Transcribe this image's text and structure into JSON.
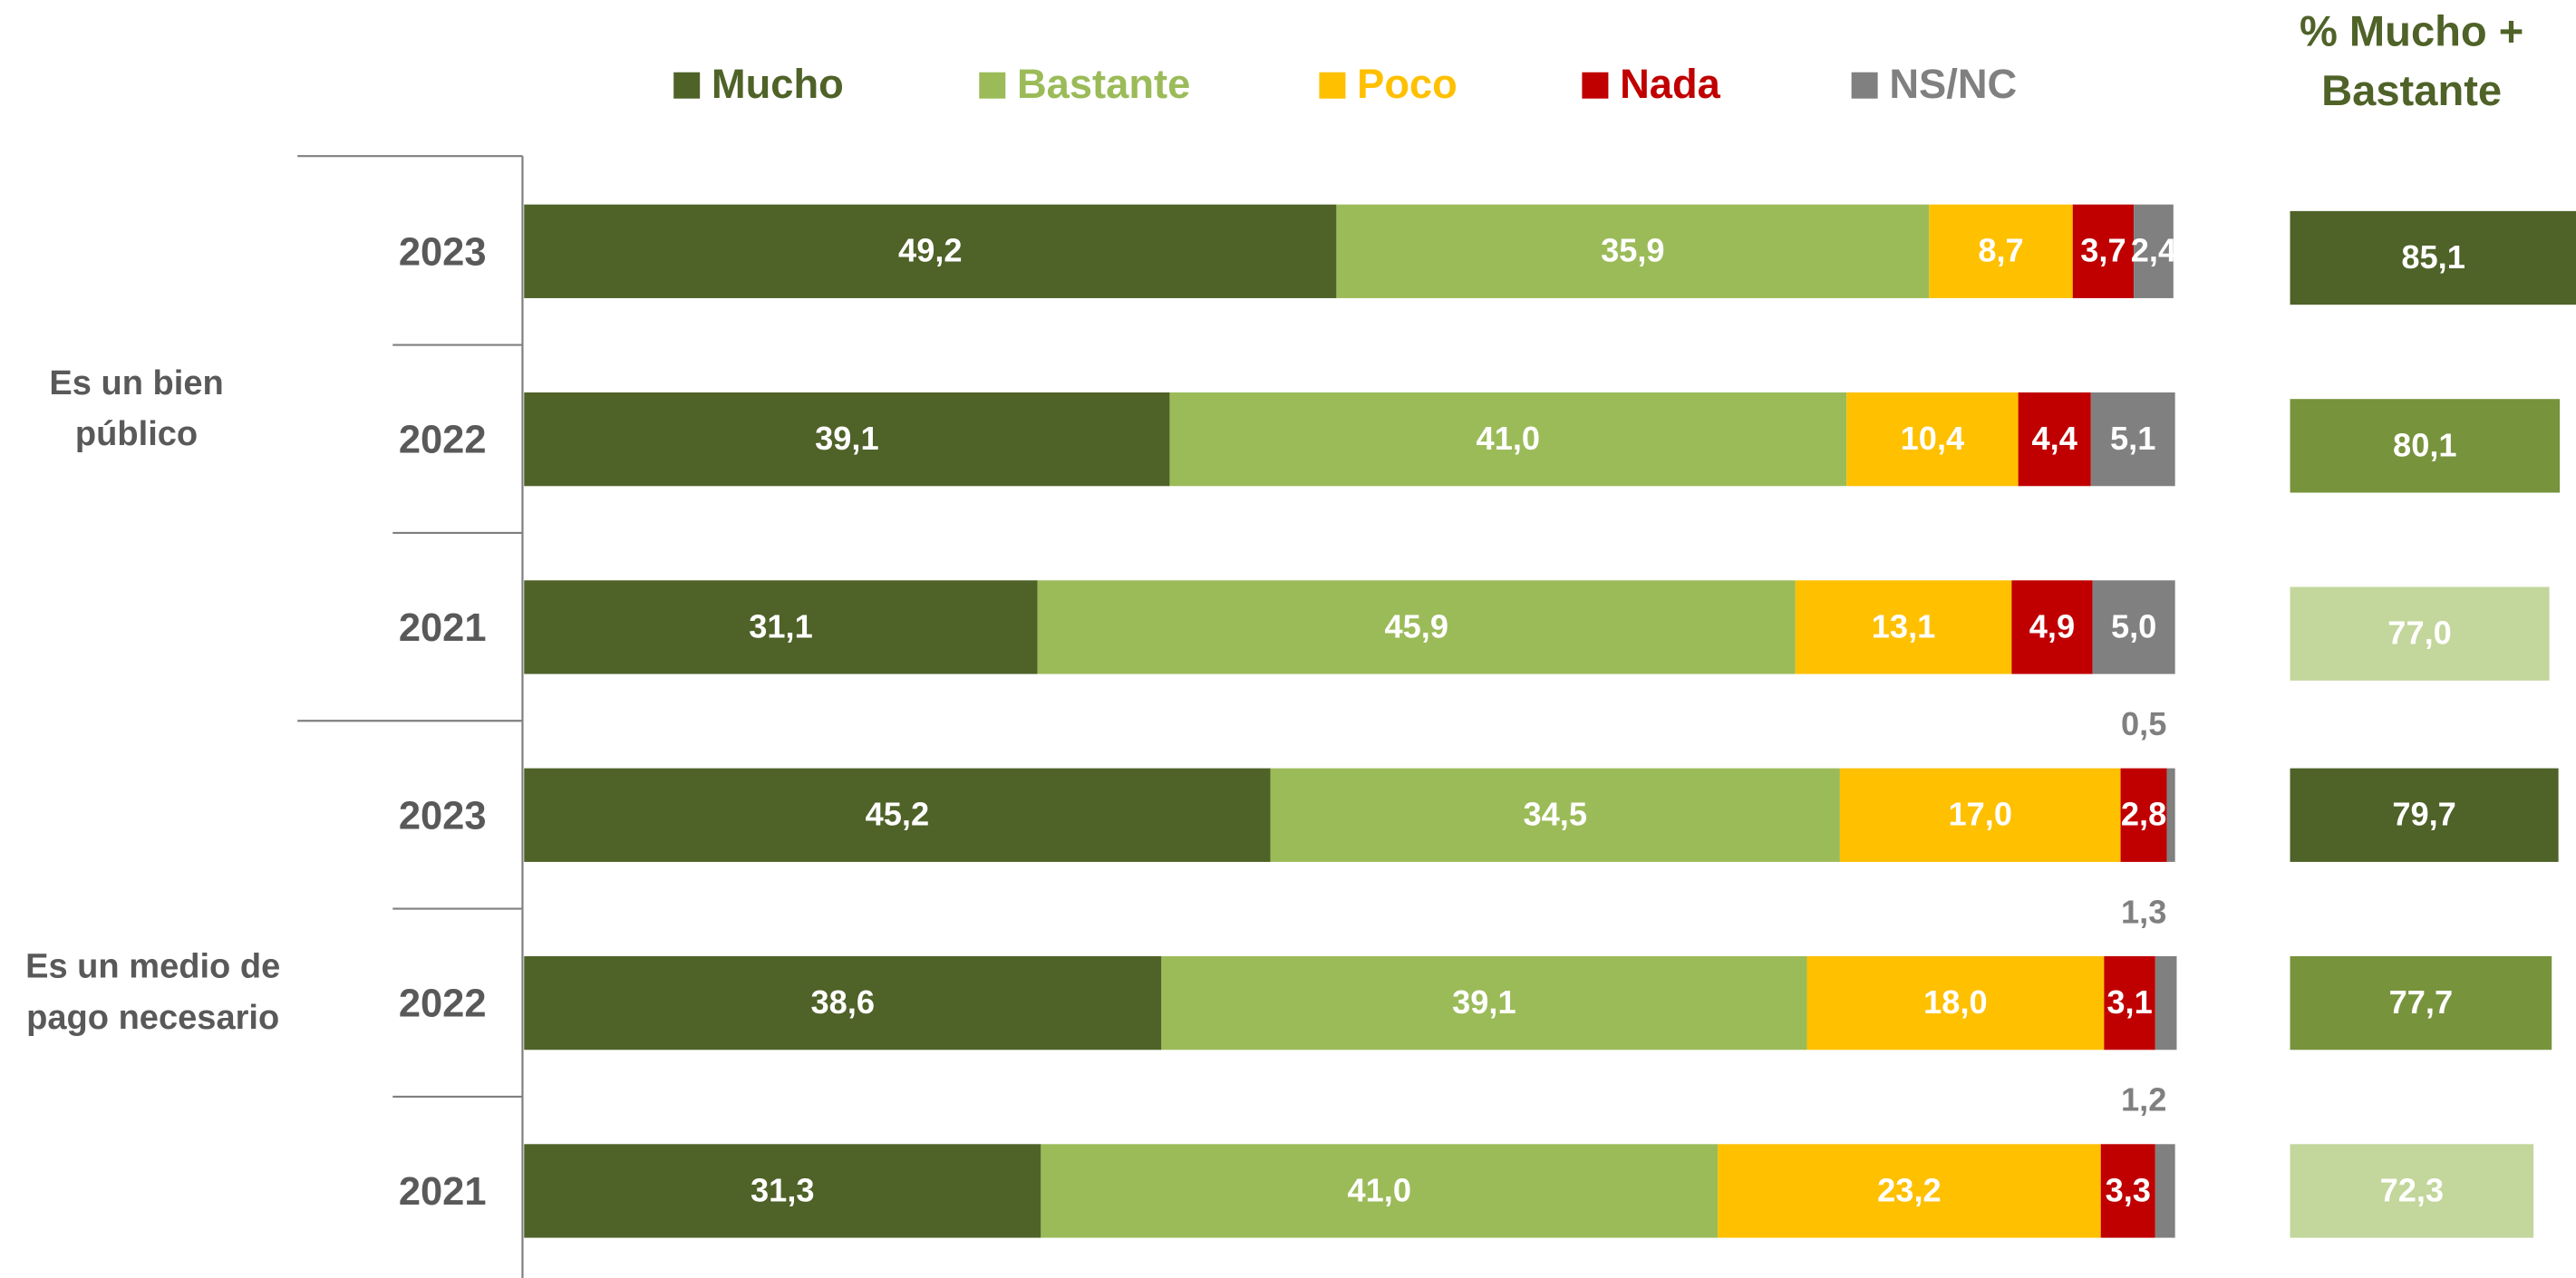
{
  "chart_data": [
    {
      "type": "stacked-bar-horizontal",
      "categories": [
        "2023",
        "2022",
        "2021",
        "2023",
        "2022",
        "2021"
      ],
      "groups": [
        {
          "label": [
            "Es un bien",
            "público"
          ],
          "size": 3
        },
        {
          "label": [
            "Es un medio de",
            "pago necesario"
          ],
          "size": 3
        }
      ],
      "series": [
        {
          "name": "Mucho",
          "color": "#4f6228",
          "values": [
            49.2,
            39.1,
            31.1,
            45.2,
            38.6,
            31.3
          ],
          "value_labels": [
            "49,2",
            "39,1",
            "31,1",
            "45,2",
            "38,6",
            "31,3"
          ]
        },
        {
          "name": "Bastante",
          "color": "#9bbb59",
          "values": [
            35.9,
            41.0,
            45.9,
            34.5,
            39.1,
            41.0
          ],
          "value_labels": [
            "35,9",
            "41,0",
            "45,9",
            "34,5",
            "39,1",
            "41,0"
          ]
        },
        {
          "name": "Poco",
          "color": "#ffc000",
          "values": [
            8.7,
            10.4,
            13.1,
            17.0,
            18.0,
            23.2
          ],
          "value_labels": [
            "8,7",
            "10,4",
            "13,1",
            "17,0",
            "18,0",
            "23,2"
          ]
        },
        {
          "name": "Nada",
          "color": "#c00000",
          "values": [
            3.7,
            4.4,
            4.9,
            2.8,
            3.1,
            3.3
          ],
          "value_labels": [
            "3,7",
            "4,4",
            "4,9",
            "2,8",
            "3,1",
            "3,3"
          ]
        },
        {
          "name": "NS/NC",
          "color": "#808080",
          "values": [
            2.4,
            5.1,
            5.0,
            0.5,
            1.3,
            1.2
          ],
          "value_labels": [
            "2,4",
            "5,1",
            "5,0",
            "0,5",
            "1,3",
            "1,2"
          ]
        }
      ],
      "legend": "top"
    },
    {
      "type": "bar-horizontal",
      "title": [
        "% Mucho +",
        "Bastante"
      ],
      "values": [
        85.1,
        80.1,
        77.0,
        79.7,
        77.7,
        72.3
      ],
      "value_labels": [
        "85,1",
        "80,1",
        "77,0",
        "79,7",
        "77,7",
        "72,3"
      ],
      "colors": [
        "#4f6228",
        "#77933c",
        "#c3d69b",
        "#4f6228",
        "#77933c",
        "#c3d69b"
      ]
    }
  ]
}
